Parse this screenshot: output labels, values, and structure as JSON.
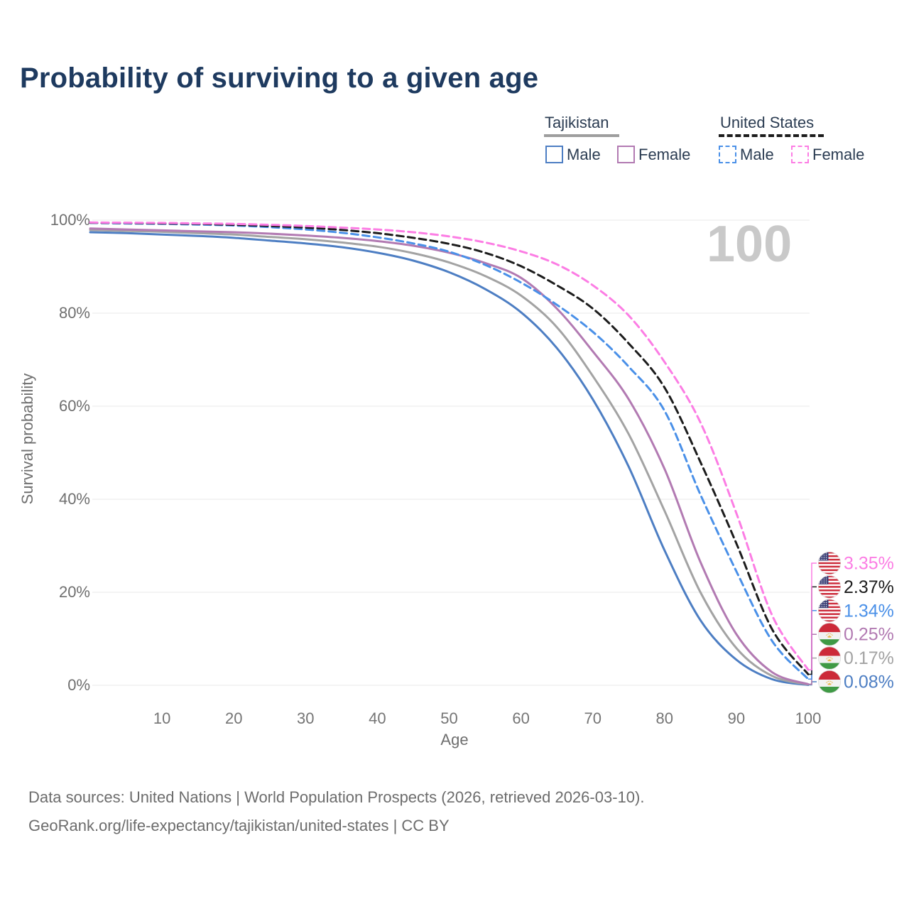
{
  "title": "Probability of surviving to a given age",
  "watermark": "100",
  "legend": {
    "groups": [
      {
        "name": "Tajikistan",
        "underline_style": "solid",
        "underline_color": "#9e9e9e",
        "items": [
          {
            "label": "Male",
            "color": "#4d7ec3",
            "dashed": false
          },
          {
            "label": "Female",
            "color": "#b27ab2",
            "dashed": false
          }
        ]
      },
      {
        "name": "United States",
        "underline_style": "dashed",
        "underline_color": "#1c1c1c",
        "items": [
          {
            "label": "Male",
            "color": "#4a90e8",
            "dashed": true
          },
          {
            "label": "Female",
            "color": "#fc7de4",
            "dashed": true
          }
        ]
      }
    ]
  },
  "chart_data": {
    "type": "line",
    "title": "Probability of surviving to a given age",
    "xlabel": "Age",
    "ylabel": "Survival probability",
    "xlim": [
      0,
      100
    ],
    "ylim": [
      0,
      100
    ],
    "xticks": [
      10,
      20,
      30,
      40,
      50,
      60,
      70,
      80,
      90,
      100
    ],
    "ytick_labels": [
      "0%",
      "20%",
      "40%",
      "60%",
      "80%",
      "100%"
    ],
    "ytick_values": [
      0,
      20,
      40,
      60,
      80,
      100
    ],
    "grid": "horizontal",
    "hover_age_indicator": "100",
    "x": [
      0,
      5,
      10,
      15,
      20,
      25,
      30,
      35,
      40,
      45,
      50,
      55,
      60,
      65,
      70,
      75,
      80,
      85,
      90,
      95,
      100
    ],
    "series": [
      {
        "name": "Tajikistan Male",
        "country": "Tajikistan",
        "sex": "male",
        "color": "#4d7ec3",
        "dash": "solid",
        "flag": "tj",
        "end_label": "0.08%",
        "label_row": 5,
        "values": [
          97.4,
          97.2,
          96.9,
          96.6,
          96.2,
          95.6,
          95.0,
          94.2,
          93.0,
          91.3,
          88.8,
          85.2,
          80.2,
          72.5,
          61.5,
          47.0,
          29.0,
          14.0,
          5.5,
          1.3,
          0.08
        ]
      },
      {
        "name": "Tajikistan Both sexes",
        "country": "Tajikistan",
        "sex": "all",
        "color": "#a3a3a3",
        "dash": "solid",
        "flag": "tj",
        "end_label": "0.17%",
        "label_row": 4,
        "values": [
          97.9,
          97.7,
          97.5,
          97.2,
          96.9,
          96.4,
          95.9,
          95.2,
          94.3,
          92.9,
          90.9,
          88.0,
          83.8,
          77.0,
          66.5,
          54.0,
          37.5,
          20.0,
          8.0,
          2.0,
          0.17
        ]
      },
      {
        "name": "Tajikistan Female",
        "country": "Tajikistan",
        "sex": "female",
        "color": "#b27ab2",
        "dash": "solid",
        "flag": "tj",
        "end_label": "0.25%",
        "label_row": 3,
        "values": [
          98.2,
          98.0,
          97.8,
          97.6,
          97.4,
          97.1,
          96.7,
          96.2,
          95.5,
          94.5,
          93.0,
          90.8,
          87.6,
          81.0,
          71.8,
          61.5,
          46.5,
          26.5,
          11.0,
          2.8,
          0.25
        ]
      },
      {
        "name": "United States Male",
        "country": "United States",
        "sex": "male",
        "color": "#4a90e8",
        "dash": "dashed",
        "flag": "us",
        "end_label": "1.34%",
        "label_row": 2,
        "values": [
          99.4,
          99.3,
          99.2,
          99.05,
          98.85,
          98.5,
          98.0,
          97.3,
          96.3,
          95.0,
          93.2,
          90.4,
          86.6,
          81.8,
          76.0,
          68.5,
          59.0,
          41.0,
          24.5,
          9.5,
          1.34
        ]
      },
      {
        "name": "United States Both sexes",
        "country": "United States",
        "sex": "all",
        "color": "#1c1c1c",
        "dash": "dashed",
        "flag": "us",
        "end_label": "2.37%",
        "label_row": 1,
        "values": [
          99.45,
          99.4,
          99.3,
          99.2,
          99.0,
          98.75,
          98.4,
          97.9,
          97.2,
          96.2,
          94.9,
          93.0,
          90.1,
          86.0,
          81.0,
          73.5,
          64.0,
          48.0,
          30.5,
          12.0,
          2.37
        ]
      },
      {
        "name": "United States Female",
        "country": "United States",
        "sex": "female",
        "color": "#fc7de4",
        "dash": "dashed",
        "flag": "us",
        "end_label": "3.35%",
        "label_row": 0,
        "values": [
          99.5,
          99.45,
          99.4,
          99.3,
          99.2,
          99.0,
          98.75,
          98.4,
          98.0,
          97.4,
          96.5,
          95.2,
          93.3,
          90.5,
          86.0,
          79.5,
          69.5,
          56.5,
          37.0,
          15.0,
          3.35
        ]
      }
    ]
  },
  "footer": {
    "line1": "Data sources: United Nations | World Population Prospects (2026, retrieved 2026-03-10).",
    "line2": "GeoRank.org/life-expectancy/tajikistan/united-states | CC BY"
  }
}
